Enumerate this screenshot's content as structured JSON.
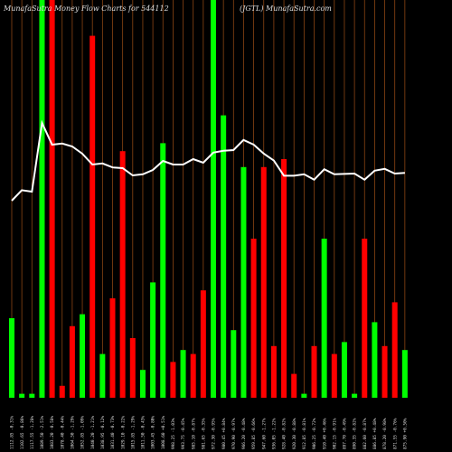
{
  "chart_data": {
    "type": "bar",
    "title_left": "MunafaSutra  Money Flow  Charts for 544112",
    "title_right": "(JGTL) MunafaSutra.com",
    "colors": {
      "up": "#00ff00",
      "down": "#ff0000",
      "grid": "#8b4513",
      "line": "#ffffff",
      "background": "#000000",
      "text": "#dddddd"
    },
    "bars": [
      {
        "label": "1112.85 -0.31%",
        "value": 20,
        "dir": "up"
      },
      {
        "label": "1102.65 -0.86%",
        "value": 1,
        "dir": "up"
      },
      {
        "label": "1117.55 -1.28%",
        "value": 1,
        "dir": "up"
      },
      {
        "label": "1089.50 -2.51%",
        "value": 100,
        "dir": "up"
      },
      {
        "label": "1083.20 -0.58%",
        "value": 100,
        "dir": "down"
      },
      {
        "label": "1078.40 -0.44%",
        "value": 3,
        "dir": "down"
      },
      {
        "label": "1064.50 -1.29%",
        "value": 18,
        "dir": "down"
      },
      {
        "label": "1052.85 -1.09%",
        "value": 21,
        "dir": "up"
      },
      {
        "label": "1040.20 -1.21%",
        "value": 91,
        "dir": "down"
      },
      {
        "label": "1038.95 -0.12%",
        "value": 11,
        "dir": "up"
      },
      {
        "label": "1031.40 -0.73%",
        "value": 25,
        "dir": "down"
      },
      {
        "label": "1029.10 -0.22%",
        "value": 62,
        "dir": "down"
      },
      {
        "label": "1015.85 -1.29%",
        "value": 15,
        "dir": "down"
      },
      {
        "label": "1011.50 -0.43%",
        "value": 7,
        "dir": "up"
      },
      {
        "label": "1003.45 -0.80%",
        "value": 29,
        "dir": "up"
      },
      {
        "label": "1008.60 +0.51%",
        "value": 64,
        "dir": "up"
      },
      {
        "label": "998.25 -1.03%",
        "value": 9,
        "dir": "down"
      },
      {
        "label": "993.75 -0.45%",
        "value": 12,
        "dir": "up"
      },
      {
        "label": "985.10 -0.87%",
        "value": 11,
        "dir": "down"
      },
      {
        "label": "981.65 -0.35%",
        "value": 27,
        "dir": "down"
      },
      {
        "label": "972.30 -0.95%",
        "value": 100,
        "dir": "up"
      },
      {
        "label": "980.45 +0.84%",
        "value": 71,
        "dir": "up"
      },
      {
        "label": "970.90 -0.97%",
        "value": 17,
        "dir": "up"
      },
      {
        "label": "966.20 -0.48%",
        "value": 58,
        "dir": "up"
      },
      {
        "label": "959.85 -0.66%",
        "value": 40,
        "dir": "down"
      },
      {
        "label": "947.60 -1.27%",
        "value": 58,
        "dir": "down"
      },
      {
        "label": "936.05 -1.22%",
        "value": 13,
        "dir": "down"
      },
      {
        "label": "928.40 -0.82%",
        "value": 60,
        "dir": "down"
      },
      {
        "label": "920.30 -0.88%",
        "value": 6,
        "dir": "down"
      },
      {
        "label": "912.85 -0.81%",
        "value": 1,
        "dir": "up"
      },
      {
        "label": "906.25 -0.72%",
        "value": 13,
        "dir": "down"
      },
      {
        "label": "910.40 +0.46%",
        "value": 40,
        "dir": "up"
      },
      {
        "label": "902.15 -0.91%",
        "value": 11,
        "dir": "down"
      },
      {
        "label": "897.70 -0.49%",
        "value": 14,
        "dir": "up"
      },
      {
        "label": "890.35 -0.82%",
        "value": 1,
        "dir": "up"
      },
      {
        "label": "882.60 -0.87%",
        "value": 40,
        "dir": "down"
      },
      {
        "label": "886.85 +0.48%",
        "value": 19,
        "dir": "up"
      },
      {
        "label": "878.20 -0.98%",
        "value": 13,
        "dir": "down"
      },
      {
        "label": "871.55 -0.76%",
        "value": 24,
        "dir": "down"
      },
      {
        "label": "875.90 +0.50%",
        "value": 12,
        "dir": "up"
      }
    ],
    "line": [
      69.5,
      72.4,
      72,
      91,
      85,
      85.3,
      84.5,
      82.5,
      79.5,
      79.8,
      78.7,
      78.5,
      76.5,
      76.8,
      78,
      80.5,
      79.5,
      79.5,
      81,
      80,
      82.8,
      83.3,
      83.5,
      86.3,
      85,
      82.5,
      80.6,
      76.4,
      76.4,
      76.8,
      75.3,
      78.2,
      76.8,
      76.9,
      77,
      75.3,
      77.8,
      78.3,
      77,
      77.2
    ]
  }
}
